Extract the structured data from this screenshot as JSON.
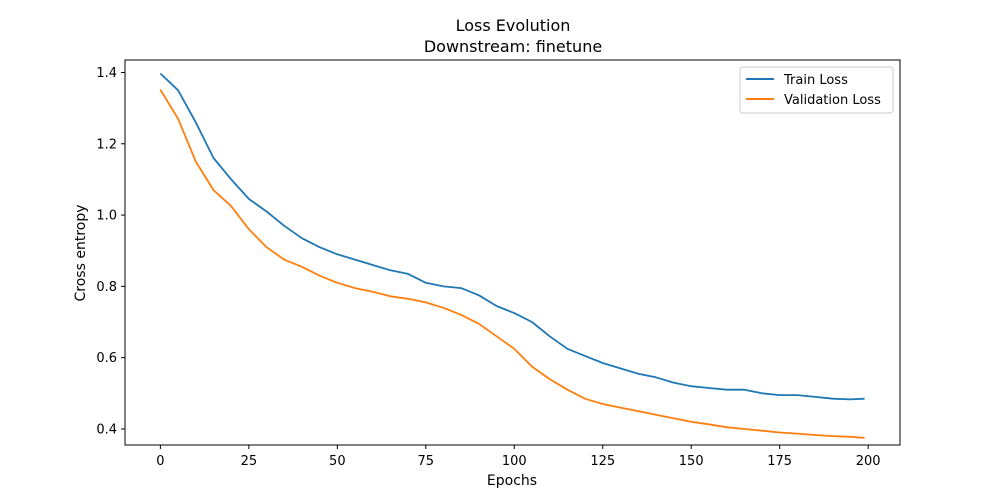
{
  "chart_data": {
    "type": "line",
    "title": "Loss Evolution",
    "subtitle": "Downstream: finetune",
    "xlabel": "Epochs",
    "ylabel": "Cross entropy",
    "xlim": [
      -10,
      209
    ],
    "ylim": [
      0.355,
      1.435
    ],
    "x_ticks": [
      0,
      25,
      50,
      75,
      100,
      125,
      150,
      175,
      200
    ],
    "y_ticks": [
      0.4,
      0.6,
      0.8,
      1.0,
      1.2,
      1.4
    ],
    "y_tick_labels": [
      "0.4",
      "0.6",
      "0.8",
      "1.0",
      "1.2",
      "1.4"
    ],
    "legend_position": "top-right",
    "grid": false,
    "series": [
      {
        "name": "Train Loss",
        "color": "#1f77b4",
        "x": [
          0,
          5,
          10,
          15,
          20,
          25,
          30,
          35,
          40,
          45,
          50,
          55,
          60,
          65,
          70,
          75,
          80,
          85,
          90,
          95,
          100,
          105,
          110,
          115,
          120,
          125,
          130,
          135,
          140,
          145,
          150,
          155,
          160,
          165,
          170,
          175,
          180,
          185,
          190,
          195,
          199
        ],
        "values": [
          1.397,
          1.35,
          1.26,
          1.16,
          1.1,
          1.045,
          1.01,
          0.97,
          0.935,
          0.91,
          0.89,
          0.875,
          0.86,
          0.845,
          0.835,
          0.81,
          0.8,
          0.795,
          0.775,
          0.745,
          0.725,
          0.7,
          0.66,
          0.625,
          0.605,
          0.585,
          0.57,
          0.555,
          0.545,
          0.53,
          0.52,
          0.515,
          0.51,
          0.51,
          0.5,
          0.495,
          0.495,
          0.49,
          0.485,
          0.483,
          0.485
        ]
      },
      {
        "name": "Validation Loss",
        "color": "#ff7f0e",
        "x": [
          0,
          5,
          10,
          15,
          20,
          25,
          30,
          35,
          40,
          45,
          50,
          55,
          60,
          65,
          70,
          75,
          80,
          85,
          90,
          95,
          100,
          105,
          110,
          115,
          120,
          125,
          130,
          135,
          140,
          145,
          150,
          155,
          160,
          165,
          170,
          175,
          180,
          185,
          190,
          195,
          199
        ],
        "values": [
          1.352,
          1.27,
          1.15,
          1.07,
          1.025,
          0.96,
          0.91,
          0.875,
          0.855,
          0.83,
          0.81,
          0.795,
          0.785,
          0.772,
          0.765,
          0.755,
          0.74,
          0.72,
          0.695,
          0.66,
          0.625,
          0.575,
          0.54,
          0.51,
          0.485,
          0.47,
          0.46,
          0.45,
          0.44,
          0.43,
          0.42,
          0.413,
          0.405,
          0.4,
          0.395,
          0.39,
          0.387,
          0.383,
          0.38,
          0.378,
          0.375
        ]
      }
    ]
  }
}
